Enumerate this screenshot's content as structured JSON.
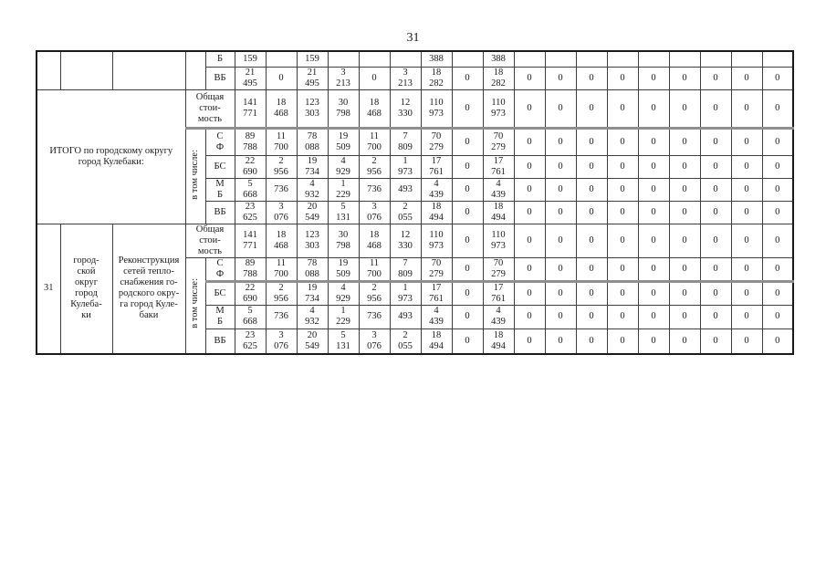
{
  "page_number": "31",
  "table": {
    "labels": {
      "itogo": "ИТОГО по городскому округу\nгород Кулебаки:",
      "total_cost": "Общая\nстои-\nмость",
      "including": "в том числе:",
      "src_b": "Б",
      "src_vb": "ВБ",
      "src_sf": "С\nФ",
      "src_bs": "БС",
      "src_mb": "М\nБ"
    },
    "row31": {
      "number": "31",
      "municipality": "город-\nской\nокруг\nгород\nКулеба-\nки",
      "project": "Реконструкция\nсетей тепло-\nснабжения го-\nродского окру-\nга город Куле-\nбаки"
    },
    "data_rows": {
      "carry_b": [
        "159",
        "",
        "159",
        "",
        "",
        "",
        "388",
        "",
        "388",
        "",
        "",
        "",
        "",
        "",
        "",
        "",
        "",
        ""
      ],
      "carry_vb": [
        "21\n495",
        "0",
        "21\n495",
        "3\n213",
        "0",
        "3\n213",
        "18\n282",
        "0",
        "18\n282",
        "0",
        "0",
        "0",
        "0",
        "0",
        "0",
        "0",
        "0",
        "0"
      ],
      "itogo_total": [
        "141\n771",
        "18\n468",
        "123\n303",
        "30\n798",
        "18\n468",
        "12\n330",
        "110\n973",
        "0",
        "110\n973",
        "0",
        "0",
        "0",
        "0",
        "0",
        "0",
        "0",
        "0",
        "0"
      ],
      "itogo_sf": [
        "89\n788",
        "11\n700",
        "78\n088",
        "19\n509",
        "11\n700",
        "7\n809",
        "70\n279",
        "0",
        "70\n279",
        "0",
        "0",
        "0",
        "0",
        "0",
        "0",
        "0",
        "0",
        "0"
      ],
      "itogo_bs": [
        "22\n690",
        "2\n956",
        "19\n734",
        "4\n929",
        "2\n956",
        "1\n973",
        "17\n761",
        "0",
        "17\n761",
        "0",
        "0",
        "0",
        "0",
        "0",
        "0",
        "0",
        "0",
        "0"
      ],
      "itogo_mb": [
        "5\n668",
        "736",
        "4\n932",
        "1\n229",
        "736",
        "493",
        "4\n439",
        "0",
        "4\n439",
        "0",
        "0",
        "0",
        "0",
        "0",
        "0",
        "0",
        "0",
        "0"
      ],
      "itogo_vb": [
        "23\n625",
        "3\n076",
        "20\n549",
        "5\n131",
        "3\n076",
        "2\n055",
        "18\n494",
        "0",
        "18\n494",
        "0",
        "0",
        "0",
        "0",
        "0",
        "0",
        "0",
        "0",
        "0"
      ],
      "r31_total": [
        "141\n771",
        "18\n468",
        "123\n303",
        "30\n798",
        "18\n468",
        "12\n330",
        "110\n973",
        "0",
        "110\n973",
        "0",
        "0",
        "0",
        "0",
        "0",
        "0",
        "0",
        "0",
        "0"
      ],
      "r31_sf": [
        "89\n788",
        "11\n700",
        "78\n088",
        "19\n509",
        "11\n700",
        "7\n809",
        "70\n279",
        "0",
        "70\n279",
        "0",
        "0",
        "0",
        "0",
        "0",
        "0",
        "0",
        "0",
        "0"
      ],
      "r31_bs": [
        "22\n690",
        "2\n956",
        "19\n734",
        "4\n929",
        "2\n956",
        "1\n973",
        "17\n761",
        "0",
        "17\n761",
        "0",
        "0",
        "0",
        "0",
        "0",
        "0",
        "0",
        "0",
        "0"
      ],
      "r31_mb": [
        "5\n668",
        "736",
        "4\n932",
        "1\n229",
        "736",
        "493",
        "4\n439",
        "0",
        "4\n439",
        "0",
        "0",
        "0",
        "0",
        "0",
        "0",
        "0",
        "0",
        "0"
      ],
      "r31_vb": [
        "23\n625",
        "3\n076",
        "20\n549",
        "5\n131",
        "3\n076",
        "2\n055",
        "18\n494",
        "0",
        "18\n494",
        "0",
        "0",
        "0",
        "0",
        "0",
        "0",
        "0",
        "0",
        "0"
      ]
    }
  }
}
